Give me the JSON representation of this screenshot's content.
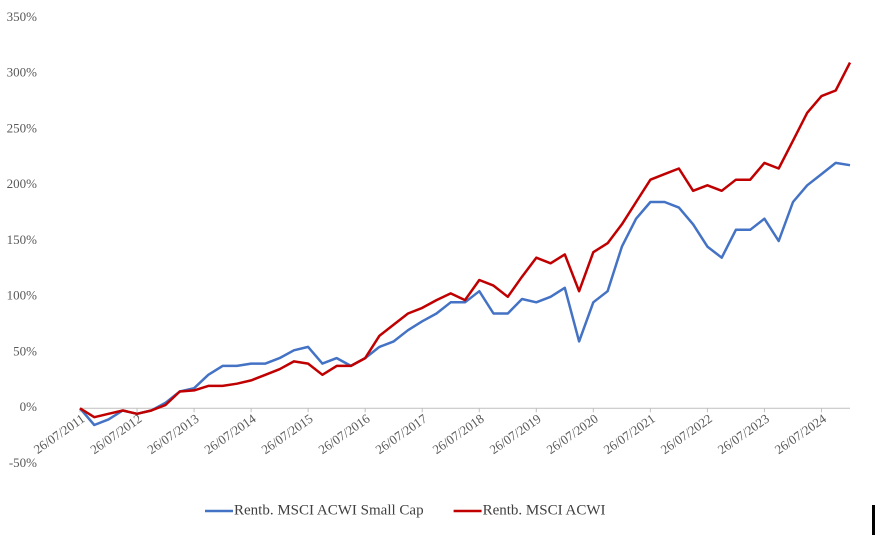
{
  "chart_data": {
    "type": "line",
    "categories": [
      "26/07/2011",
      null,
      null,
      null,
      "26/07/2012",
      null,
      null,
      null,
      "26/07/2013",
      null,
      null,
      null,
      "26/07/2014",
      null,
      null,
      null,
      "26/07/2015",
      null,
      null,
      null,
      "26/07/2016",
      null,
      null,
      null,
      "26/07/2017",
      null,
      null,
      null,
      "26/07/2018",
      null,
      null,
      null,
      "26/07/2019",
      null,
      null,
      null,
      "26/07/2020",
      null,
      null,
      null,
      "26/07/2021",
      null,
      null,
      null,
      "26/07/2022",
      null,
      null,
      null,
      "26/07/2023",
      null,
      null,
      null,
      "26/07/2024",
      null,
      null
    ],
    "series": [
      {
        "name": "Rentb. MSCI ACWI Small Cap",
        "color": "#4472c4",
        "values": [
          0,
          -15,
          -10,
          -2,
          -5,
          -2,
          5,
          15,
          18,
          30,
          38,
          38,
          40,
          40,
          45,
          52,
          55,
          40,
          45,
          38,
          45,
          55,
          60,
          70,
          78,
          85,
          95,
          95,
          105,
          85,
          85,
          98,
          95,
          100,
          108,
          60,
          95,
          105,
          145,
          170,
          185,
          185,
          180,
          165,
          145,
          135,
          160,
          160,
          170,
          150,
          185,
          200,
          210,
          220,
          218
        ]
      },
      {
        "name": "Rentb. MSCI ACWI",
        "color": "#c00000",
        "values": [
          0,
          -8,
          -5,
          -2,
          -5,
          -2,
          3,
          15,
          16,
          20,
          20,
          22,
          25,
          30,
          35,
          42,
          40,
          30,
          38,
          38,
          45,
          65,
          75,
          85,
          90,
          97,
          103,
          97,
          115,
          110,
          100,
          118,
          135,
          130,
          138,
          105,
          140,
          148,
          165,
          185,
          205,
          210,
          215,
          195,
          200,
          195,
          205,
          205,
          220,
          215,
          240,
          265,
          280,
          285,
          310
        ]
      }
    ],
    "ylim": [
      -50,
      350
    ],
    "yticks": [
      {
        "value": -50,
        "label": "-50%"
      },
      {
        "value": 0,
        "label": "0%"
      },
      {
        "value": 50,
        "label": "50%"
      },
      {
        "value": 100,
        "label": "100%"
      },
      {
        "value": 150,
        "label": "150%"
      },
      {
        "value": 200,
        "label": "200%"
      },
      {
        "value": 250,
        "label": "250%"
      },
      {
        "value": 300,
        "label": "300%"
      },
      {
        "value": 350,
        "label": "350%"
      }
    ],
    "grid": false
  }
}
